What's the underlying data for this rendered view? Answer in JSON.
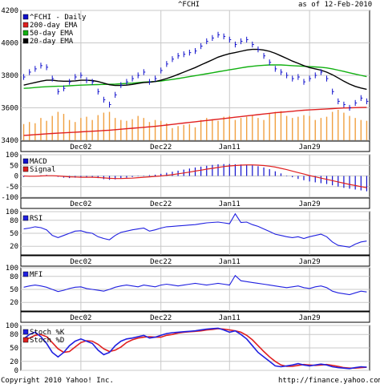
{
  "header": {
    "symbol": "^FCHI",
    "as_of": "as of 12-Feb-2010"
  },
  "footer": {
    "copyright": "Copyright 2010 Yahoo! Inc.",
    "url": "http://finance.yahoo.com/"
  },
  "colors": {
    "price": "#1010cc",
    "ema200": "#e02020",
    "ema50": "#10b010",
    "ema20": "#000000",
    "volume": "#f0a040",
    "macd": "#1010cc",
    "signal": "#e02020",
    "oscillator": "#2020e0",
    "stochD": "#e02020",
    "grid": "#c8c8c8"
  },
  "chart_data": [
    {
      "id": "price",
      "type": "line",
      "x_dates": [
        "2009-11-18",
        "2009-11-19",
        "2009-11-20",
        "2009-11-23",
        "2009-11-24",
        "2009-11-25",
        "2009-11-26",
        "2009-11-27",
        "2009-11-30",
        "2009-12-01",
        "2009-12-02",
        "2009-12-03",
        "2009-12-04",
        "2009-12-07",
        "2009-12-08",
        "2009-12-09",
        "2009-12-10",
        "2009-12-11",
        "2009-12-14",
        "2009-12-15",
        "2009-12-16",
        "2009-12-17",
        "2009-12-18",
        "2009-12-21",
        "2009-12-22",
        "2009-12-23",
        "2009-12-24",
        "2009-12-28",
        "2009-12-29",
        "2009-12-30",
        "2009-12-31",
        "2010-01-04",
        "2010-01-05",
        "2010-01-06",
        "2010-01-07",
        "2010-01-08",
        "2010-01-11",
        "2010-01-12",
        "2010-01-13",
        "2010-01-14",
        "2010-01-15",
        "2010-01-18",
        "2010-01-19",
        "2010-01-20",
        "2010-01-21",
        "2010-01-22",
        "2010-01-25",
        "2010-01-26",
        "2010-01-27",
        "2010-01-28",
        "2010-01-29",
        "2010-02-01",
        "2010-02-02",
        "2010-02-03",
        "2010-02-04",
        "2010-02-05",
        "2010-02-08",
        "2010-02-09",
        "2010-02-10",
        "2010-02-11",
        "2010-02-12"
      ],
      "x_tick_labels": [
        {
          "label": "Dec02",
          "date": "2009-12-02"
        },
        {
          "label": "Dec22",
          "date": "2009-12-22"
        },
        {
          "label": "Jan11",
          "date": "2010-01-11"
        },
        {
          "label": "Jan29",
          "date": "2010-01-29"
        }
      ],
      "ylim": [
        3400,
        4200
      ],
      "y_ticks": [
        3400,
        3600,
        3800,
        4000,
        4200
      ],
      "title": "^FCHI",
      "legend": [
        "^FCHI - Daily",
        "200-day EMA",
        "50-day EMA",
        "20-day EMA"
      ],
      "legend_position": "top-left",
      "grid": true,
      "series": [
        {
          "name": "^FCHI - Daily",
          "values": [
            3790,
            3820,
            3840,
            3860,
            3850,
            3780,
            3700,
            3720,
            3760,
            3790,
            3800,
            3770,
            3760,
            3700,
            3650,
            3620,
            3680,
            3740,
            3760,
            3780,
            3800,
            3820,
            3760,
            3780,
            3830,
            3870,
            3900,
            3920,
            3930,
            3940,
            3950,
            3980,
            4010,
            4030,
            4050,
            4040,
            4020,
            3990,
            4010,
            4020,
            3990,
            3960,
            3920,
            3880,
            3840,
            3820,
            3800,
            3780,
            3790,
            3760,
            3780,
            3800,
            3820,
            3780,
            3700,
            3640,
            3620,
            3600,
            3630,
            3660,
            3640
          ]
        },
        {
          "name": "200-day EMA",
          "values": [
            3430,
            3432,
            3435,
            3437,
            3440,
            3442,
            3444,
            3446,
            3448,
            3450,
            3452,
            3454,
            3456,
            3458,
            3460,
            3462,
            3465,
            3468,
            3471,
            3474,
            3477,
            3480,
            3483,
            3486,
            3490,
            3494,
            3498,
            3502,
            3506,
            3510,
            3514,
            3518,
            3522,
            3526,
            3530,
            3534,
            3538,
            3542,
            3546,
            3550,
            3554,
            3558,
            3562,
            3566,
            3570,
            3573,
            3576,
            3579,
            3582,
            3585,
            3587,
            3589,
            3591,
            3593,
            3595,
            3597,
            3599,
            3600,
            3601,
            3602,
            3603
          ]
        },
        {
          "name": "50-day EMA",
          "values": [
            3720,
            3722,
            3725,
            3728,
            3730,
            3732,
            3733,
            3734,
            3736,
            3738,
            3740,
            3741,
            3742,
            3743,
            3744,
            3745,
            3746,
            3748,
            3750,
            3752,
            3755,
            3758,
            3760,
            3762,
            3765,
            3770,
            3775,
            3780,
            3786,
            3792,
            3798,
            3804,
            3810,
            3816,
            3822,
            3828,
            3834,
            3840,
            3846,
            3852,
            3856,
            3860,
            3862,
            3864,
            3864,
            3864,
            3862,
            3860,
            3858,
            3856,
            3854,
            3852,
            3850,
            3846,
            3840,
            3832,
            3824,
            3816,
            3808,
            3800,
            3792
          ]
        },
        {
          "name": "20-day EMA",
          "values": [
            3740,
            3748,
            3756,
            3764,
            3770,
            3770,
            3766,
            3764,
            3764,
            3766,
            3770,
            3770,
            3768,
            3762,
            3752,
            3742,
            3738,
            3738,
            3740,
            3744,
            3750,
            3756,
            3758,
            3762,
            3770,
            3780,
            3792,
            3806,
            3820,
            3834,
            3848,
            3864,
            3880,
            3896,
            3912,
            3924,
            3934,
            3940,
            3948,
            3956,
            3960,
            3960,
            3956,
            3948,
            3936,
            3920,
            3904,
            3888,
            3874,
            3860,
            3848,
            3840,
            3832,
            3820,
            3804,
            3784,
            3764,
            3746,
            3732,
            3722,
            3714
          ]
        }
      ],
      "volume": [
        40,
        45,
        42,
        55,
        48,
        60,
        70,
        65,
        50,
        45,
        55,
        58,
        50,
        62,
        68,
        70,
        55,
        50,
        48,
        52,
        60,
        55,
        45,
        50,
        48,
        42,
        30,
        35,
        38,
        40,
        32,
        50,
        55,
        52,
        48,
        58,
        60,
        50,
        55,
        58,
        62,
        55,
        50,
        65,
        70,
        72,
        60,
        55,
        58,
        62,
        60,
        50,
        55,
        58,
        70,
        75,
        68,
        60,
        55,
        50,
        48
      ]
    },
    {
      "id": "macd",
      "type": "bar",
      "legend": [
        "MACD",
        "Signal"
      ],
      "ylim": [
        -100,
        100
      ],
      "y_ticks": [
        -100,
        -50,
        0,
        50,
        100
      ],
      "y_tick_labels": [
        "-100",
        "-50",
        "0",
        "50",
        "100"
      ],
      "series": [
        {
          "name": "MACD",
          "values": [
            -5,
            -3,
            0,
            3,
            5,
            2,
            -4,
            -8,
            -10,
            -8,
            -6,
            -5,
            -6,
            -10,
            -15,
            -18,
            -16,
            -12,
            -8,
            -5,
            -2,
            2,
            4,
            6,
            10,
            15,
            20,
            25,
            30,
            35,
            40,
            44,
            48,
            52,
            55,
            56,
            56,
            55,
            54,
            52,
            50,
            46,
            40,
            32,
            22,
            12,
            2,
            -6,
            -14,
            -20,
            -26,
            -30,
            -34,
            -38,
            -44,
            -50,
            -56,
            -60,
            -64,
            -68,
            -72
          ]
        },
        {
          "name": "Signal",
          "values": [
            0,
            -1,
            -1,
            0,
            1,
            1,
            0,
            -2,
            -4,
            -5,
            -6,
            -6,
            -6,
            -7,
            -9,
            -11,
            -12,
            -12,
            -11,
            -10,
            -8,
            -6,
            -4,
            -2,
            0,
            3,
            6,
            10,
            14,
            18,
            23,
            27,
            32,
            36,
            40,
            44,
            47,
            49,
            51,
            52,
            52,
            51,
            49,
            46,
            42,
            36,
            30,
            23,
            16,
            9,
            2,
            -4,
            -10,
            -16,
            -22,
            -28,
            -34,
            -40,
            -45,
            -50,
            -55
          ]
        }
      ]
    },
    {
      "id": "rsi",
      "type": "line",
      "legend": [
        "RSI"
      ],
      "ylim": [
        0,
        100
      ],
      "y_ticks": [
        20,
        50,
        80,
        100
      ],
      "series": [
        {
          "name": "RSI",
          "values": [
            60,
            62,
            65,
            63,
            58,
            45,
            40,
            45,
            50,
            55,
            56,
            52,
            50,
            42,
            38,
            35,
            45,
            52,
            55,
            58,
            60,
            62,
            55,
            58,
            62,
            65,
            66,
            67,
            68,
            69,
            70,
            72,
            74,
            75,
            76,
            74,
            72,
            95,
            75,
            76,
            70,
            66,
            60,
            54,
            48,
            45,
            42,
            40,
            42,
            38,
            42,
            45,
            48,
            42,
            30,
            22,
            20,
            18,
            25,
            30,
            32
          ]
        }
      ]
    },
    {
      "id": "mfi",
      "type": "line",
      "legend": [
        "MFI"
      ],
      "ylim": [
        0,
        100
      ],
      "y_ticks": [
        20,
        50,
        80,
        100
      ],
      "series": [
        {
          "name": "MFI",
          "values": [
            55,
            58,
            60,
            58,
            55,
            50,
            45,
            48,
            52,
            55,
            56,
            52,
            50,
            48,
            46,
            50,
            55,
            58,
            60,
            58,
            56,
            60,
            58,
            56,
            60,
            62,
            60,
            58,
            60,
            62,
            64,
            62,
            60,
            62,
            64,
            62,
            60,
            82,
            70,
            68,
            66,
            64,
            62,
            60,
            58,
            56,
            54,
            56,
            58,
            54,
            52,
            56,
            58,
            54,
            46,
            42,
            40,
            38,
            42,
            46,
            44
          ]
        }
      ]
    },
    {
      "id": "stoch",
      "type": "line",
      "legend": [
        "Stoch %K",
        "Stoch %D"
      ],
      "ylim": [
        0,
        100
      ],
      "y_ticks": [
        0,
        20,
        50,
        80,
        100
      ],
      "series": [
        {
          "name": "Stoch %K",
          "values": [
            70,
            80,
            85,
            75,
            60,
            40,
            30,
            40,
            55,
            65,
            70,
            65,
            60,
            45,
            35,
            40,
            55,
            65,
            70,
            72,
            75,
            78,
            72,
            74,
            78,
            82,
            84,
            85,
            86,
            87,
            88,
            90,
            92,
            93,
            94,
            90,
            85,
            88,
            80,
            70,
            55,
            40,
            30,
            20,
            10,
            8,
            10,
            12,
            15,
            12,
            10,
            12,
            14,
            12,
            8,
            6,
            5,
            4,
            6,
            8,
            7
          ]
        },
        {
          "name": "Stoch %D",
          "values": [
            65,
            72,
            78,
            80,
            75,
            62,
            48,
            40,
            42,
            52,
            62,
            66,
            65,
            58,
            48,
            42,
            45,
            52,
            62,
            68,
            72,
            74,
            75,
            74,
            74,
            78,
            80,
            83,
            85,
            86,
            87,
            88,
            90,
            91,
            93,
            92,
            90,
            88,
            85,
            78,
            68,
            55,
            42,
            30,
            20,
            12,
            9,
            9,
            11,
            13,
            12,
            11,
            12,
            13,
            11,
            9,
            6,
            5,
            5,
            6,
            7
          ]
        }
      ]
    }
  ]
}
